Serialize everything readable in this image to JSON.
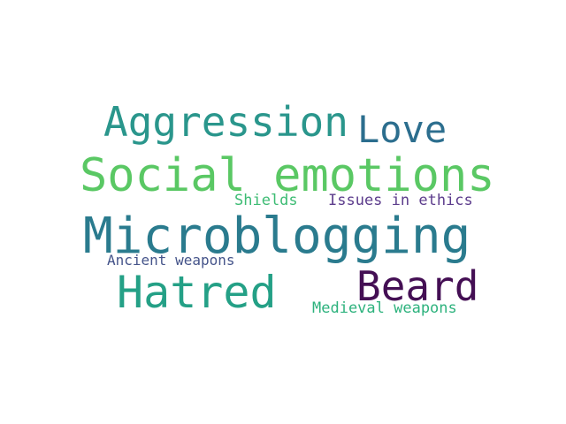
{
  "words": [
    {
      "text": "Aggression",
      "color": "#2a968c"
    },
    {
      "text": "Love",
      "color": "#2c6e8e"
    },
    {
      "text": "Social emotions",
      "color": "#5ac864"
    },
    {
      "text": "Shields",
      "color": "#3dbc74"
    },
    {
      "text": "Issues in ethics",
      "color": "#5c3c8c"
    },
    {
      "text": "Microblogging",
      "color": "#2a7b8e"
    },
    {
      "text": "Ancient weapons",
      "color": "#45548a"
    },
    {
      "text": "Hatred",
      "color": "#24a086"
    },
    {
      "text": "Beard",
      "color": "#440f54"
    },
    {
      "text": "Medieval weapons",
      "color": "#2db27d"
    }
  ]
}
